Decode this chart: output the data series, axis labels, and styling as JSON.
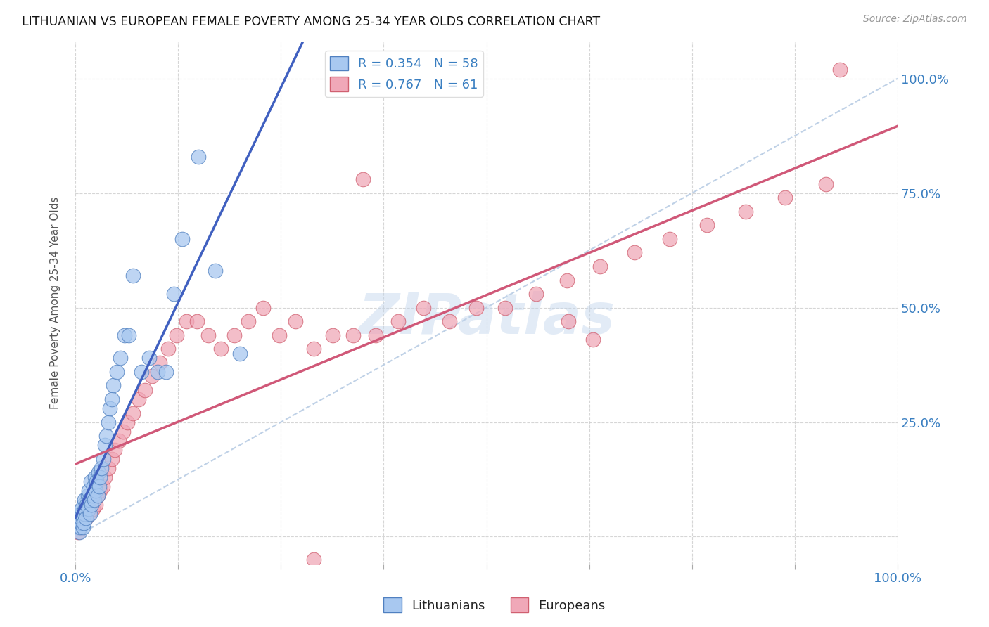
{
  "title": "LITHUANIAN VS EUROPEAN FEMALE POVERTY AMONG 25-34 YEAR OLDS CORRELATION CHART",
  "source": "Source: ZipAtlas.com",
  "ylabel": "Female Poverty Among 25-34 Year Olds",
  "legend1_label": "Lithuanians",
  "legend2_label": "Europeans",
  "R1": "0.354",
  "N1": "58",
  "R2": "0.767",
  "N2": "61",
  "color_blue": "#a8c8f0",
  "color_pink": "#f0a8b8",
  "edge_blue": "#5080c0",
  "edge_pink": "#d06070",
  "line_blue": "#4060c0",
  "line_pink": "#d05878",
  "line_diag": "#b8cce4",
  "watermark": "ZIPatlas",
  "background": "#ffffff",
  "xlim": [
    0,
    1.0
  ],
  "ylim": [
    -0.06,
    1.08
  ],
  "xtick_positions": [
    0,
    0.125,
    0.25,
    0.375,
    0.5,
    0.625,
    0.75,
    0.875,
    1.0
  ],
  "ytick_positions": [
    0,
    0.25,
    0.5,
    0.75,
    1.0
  ],
  "blue_x": [
    0.003,
    0.004,
    0.005,
    0.005,
    0.006,
    0.006,
    0.007,
    0.007,
    0.008,
    0.008,
    0.009,
    0.009,
    0.01,
    0.01,
    0.011,
    0.011,
    0.012,
    0.013,
    0.014,
    0.015,
    0.016,
    0.016,
    0.017,
    0.018,
    0.019,
    0.02,
    0.021,
    0.022,
    0.023,
    0.024,
    0.025,
    0.026,
    0.027,
    0.028,
    0.029,
    0.03,
    0.032,
    0.034,
    0.036,
    0.038,
    0.04,
    0.042,
    0.044,
    0.046,
    0.05,
    0.055,
    0.06,
    0.065,
    0.07,
    0.08,
    0.09,
    0.1,
    0.11,
    0.12,
    0.13,
    0.15,
    0.17,
    0.2
  ],
  "blue_y": [
    0.02,
    0.03,
    0.04,
    0.01,
    0.05,
    0.02,
    0.03,
    0.04,
    0.05,
    0.06,
    0.04,
    0.02,
    0.03,
    0.07,
    0.05,
    0.08,
    0.06,
    0.04,
    0.07,
    0.09,
    0.06,
    0.1,
    0.08,
    0.05,
    0.12,
    0.07,
    0.09,
    0.11,
    0.08,
    0.13,
    0.1,
    0.12,
    0.09,
    0.14,
    0.11,
    0.13,
    0.15,
    0.17,
    0.2,
    0.22,
    0.25,
    0.28,
    0.3,
    0.33,
    0.36,
    0.39,
    0.44,
    0.44,
    0.57,
    0.36,
    0.39,
    0.36,
    0.36,
    0.53,
    0.65,
    0.83,
    0.58,
    0.4
  ],
  "pink_x": [
    0.003,
    0.005,
    0.007,
    0.009,
    0.011,
    0.013,
    0.015,
    0.017,
    0.019,
    0.021,
    0.023,
    0.025,
    0.027,
    0.03,
    0.033,
    0.036,
    0.04,
    0.044,
    0.048,
    0.053,
    0.058,
    0.063,
    0.07,
    0.077,
    0.085,
    0.093,
    0.103,
    0.113,
    0.123,
    0.135,
    0.148,
    0.162,
    0.177,
    0.193,
    0.21,
    0.228,
    0.248,
    0.268,
    0.29,
    0.313,
    0.338,
    0.365,
    0.393,
    0.423,
    0.455,
    0.488,
    0.523,
    0.56,
    0.598,
    0.638,
    0.68,
    0.723,
    0.768,
    0.815,
    0.863,
    0.913,
    0.93,
    0.35,
    0.29,
    0.6,
    0.63
  ],
  "pink_y": [
    0.01,
    0.02,
    0.03,
    0.04,
    0.05,
    0.04,
    0.06,
    0.05,
    0.07,
    0.06,
    0.08,
    0.07,
    0.09,
    0.1,
    0.11,
    0.13,
    0.15,
    0.17,
    0.19,
    0.21,
    0.23,
    0.25,
    0.27,
    0.3,
    0.32,
    0.35,
    0.38,
    0.41,
    0.44,
    0.47,
    0.47,
    0.44,
    0.41,
    0.44,
    0.47,
    0.5,
    0.44,
    0.47,
    0.41,
    0.44,
    0.44,
    0.44,
    0.47,
    0.5,
    0.47,
    0.5,
    0.5,
    0.53,
    0.56,
    0.59,
    0.62,
    0.65,
    0.68,
    0.71,
    0.74,
    0.77,
    1.02,
    0.78,
    -0.05,
    0.47,
    0.43
  ]
}
